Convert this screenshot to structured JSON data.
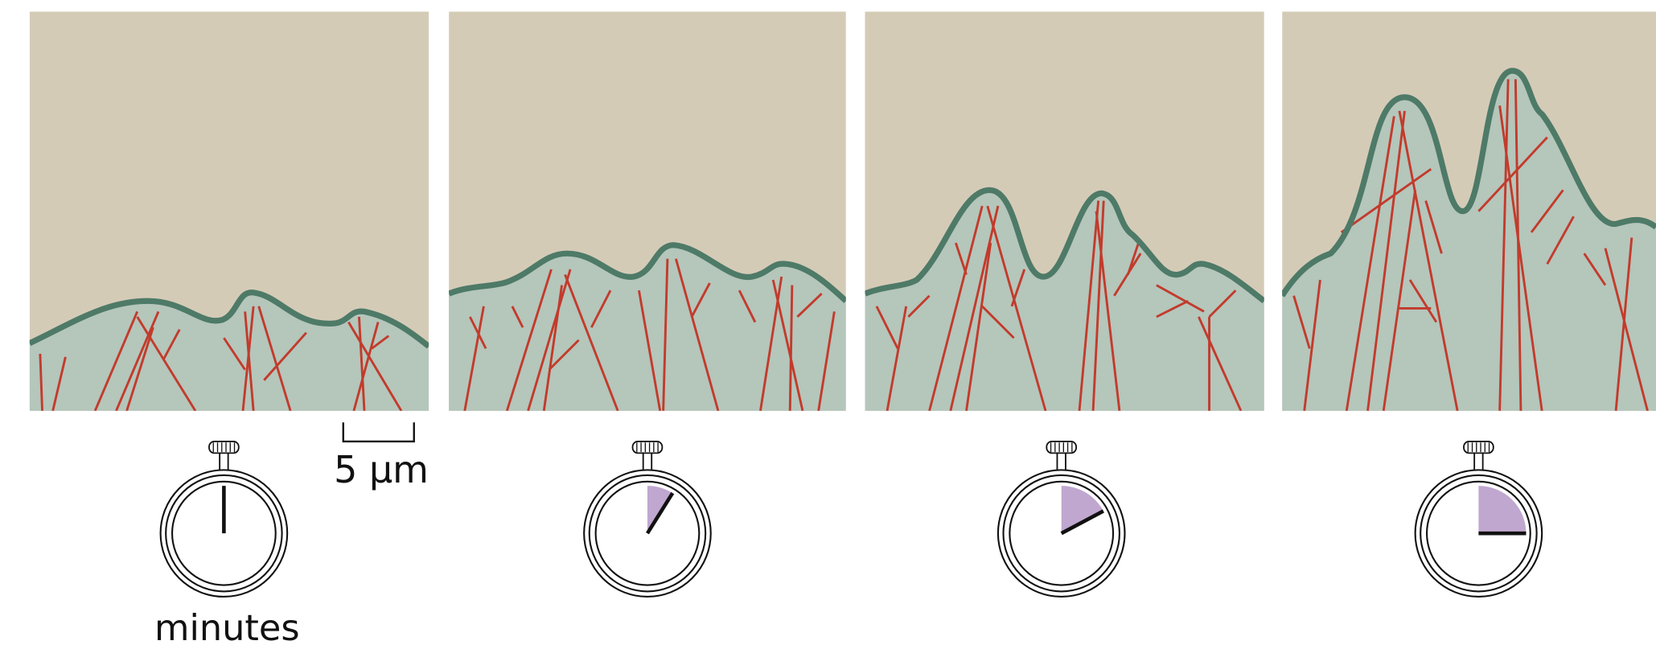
{
  "scale_bar": {
    "label": "5 μm"
  },
  "timer": {
    "label": "minutes"
  }
}
